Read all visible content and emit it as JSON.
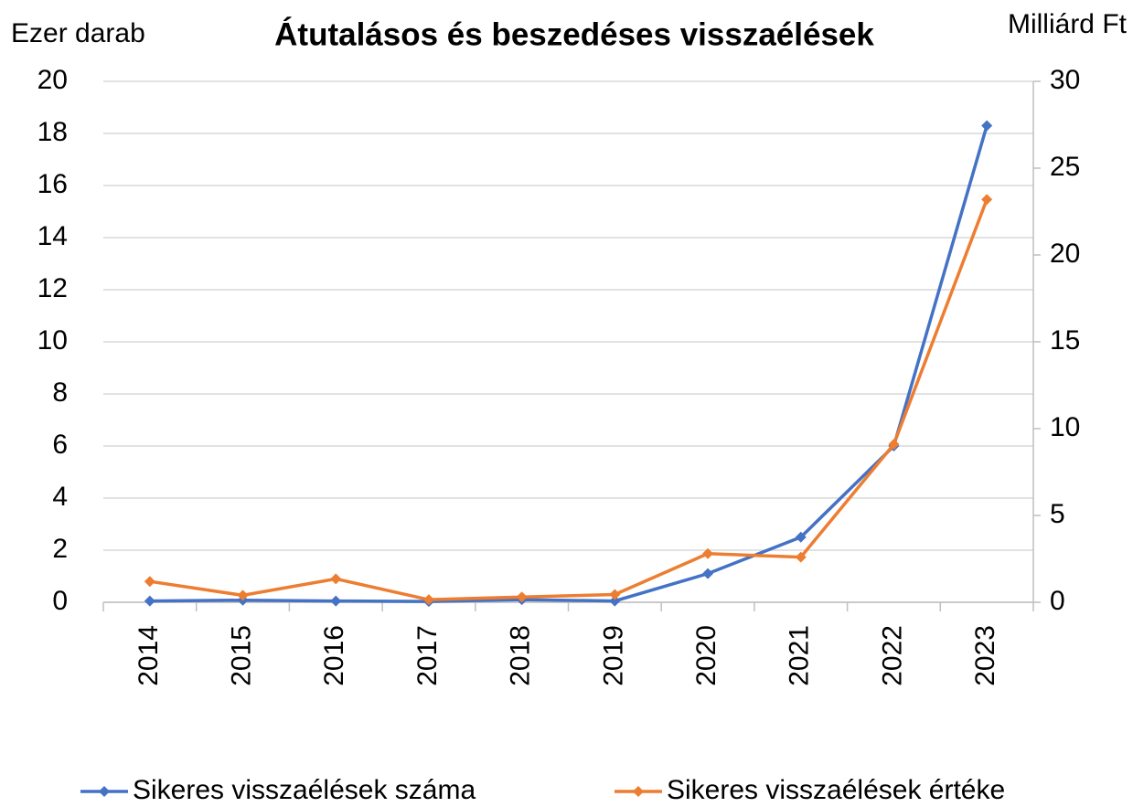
{
  "chart_data": {
    "type": "line",
    "title": "Átutalásos és beszedéses visszaélések",
    "y_label": "Ezer darab",
    "y2_label": "Milliárd Ft",
    "categories": [
      "2014",
      "2015",
      "2016",
      "2017",
      "2018",
      "2019",
      "2020",
      "2021",
      "2022",
      "2023"
    ],
    "series": [
      {
        "name": "Sikeres visszaélések száma",
        "color": "#4472c4",
        "values": [
          0.05,
          0.08,
          0.05,
          0.03,
          0.1,
          0.05,
          1.1,
          2.5,
          6.0,
          18.3
        ]
      },
      {
        "name": "Sikeres visszaélések értéke",
        "color": "#ed7d31",
        "axis": "y2",
        "values": [
          1.2,
          0.4,
          1.35,
          0.15,
          0.3,
          0.45,
          2.8,
          2.6,
          9.1,
          23.2
        ]
      }
    ],
    "ylim": [
      0,
      20
    ],
    "yticks": [
      0,
      2,
      4,
      6,
      8,
      10,
      12,
      14,
      16,
      18,
      20
    ],
    "y2lim": [
      0,
      30
    ],
    "y2ticks": [
      0,
      5,
      10,
      15,
      20,
      25,
      30
    ],
    "grid": true,
    "legend": "bottom"
  }
}
